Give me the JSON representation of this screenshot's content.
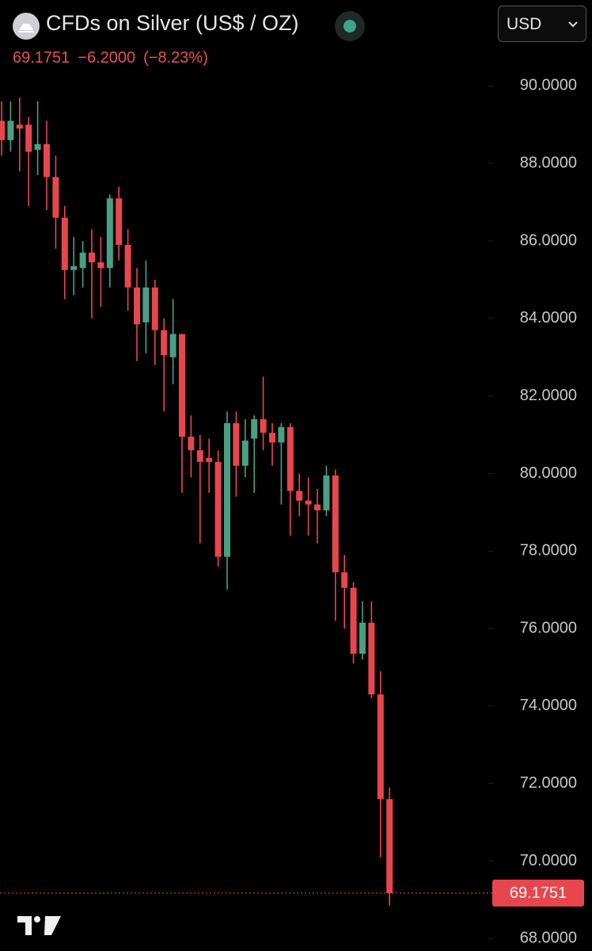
{
  "header": {
    "title": "CFDs on Silver (US$ / OZ)",
    "last": "69.1751",
    "change": "−6.2000",
    "change_pct": "(−8.23%)",
    "currency": "USD"
  },
  "chart_data": {
    "type": "candlestick",
    "open": [
      89.1,
      88.6,
      89.0,
      89.0,
      88.35,
      88.5,
      87.65,
      86.6,
      85.25,
      85.3,
      85.7,
      85.45,
      85.3,
      87.1,
      85.9,
      84.8,
      83.9,
      84.8,
      83.7,
      83.0,
      83.6,
      80.95,
      80.6,
      80.4,
      80.3,
      77.85,
      81.3,
      80.2,
      80.9,
      81.4,
      81.05,
      80.8,
      81.2,
      79.55,
      79.3,
      79.2,
      79.05,
      79.95,
      77.45,
      77.05,
      75.35,
      76.15,
      74.3,
      71.6
    ],
    "high": [
      89.6,
      89.6,
      89.7,
      89.2,
      89.6,
      89.1,
      88.2,
      86.9,
      86.1,
      86.0,
      86.3,
      86.1,
      87.2,
      87.4,
      86.3,
      85.3,
      85.5,
      85.0,
      84.0,
      84.5,
      83.6,
      81.5,
      81.0,
      80.9,
      80.6,
      81.6,
      81.6,
      81.4,
      81.5,
      82.5,
      81.3,
      81.3,
      81.3,
      80.0,
      79.9,
      79.6,
      80.2,
      80.1,
      77.9,
      77.2,
      76.7,
      76.7,
      74.9,
      71.9
    ],
    "low": [
      88.2,
      88.3,
      87.8,
      86.9,
      87.7,
      86.8,
      85.8,
      84.5,
      84.6,
      84.8,
      84.0,
      84.3,
      84.8,
      85.5,
      84.2,
      82.9,
      83.1,
      82.8,
      81.6,
      82.3,
      79.5,
      79.9,
      78.2,
      79.5,
      77.6,
      77.0,
      79.4,
      79.9,
      79.5,
      80.6,
      80.2,
      79.2,
      78.4,
      78.9,
      78.4,
      78.2,
      78.9,
      76.2,
      76.0,
      75.1,
      75.2,
      74.2,
      70.1,
      68.85
    ],
    "close": [
      88.6,
      89.1,
      88.9,
      88.3,
      88.5,
      87.65,
      86.6,
      85.25,
      85.35,
      85.7,
      85.45,
      85.3,
      87.1,
      85.9,
      84.8,
      83.85,
      84.8,
      83.7,
      83.05,
      83.6,
      80.95,
      80.6,
      80.3,
      80.3,
      77.85,
      81.3,
      80.2,
      80.85,
      81.4,
      81.05,
      80.8,
      81.2,
      79.55,
      79.3,
      79.2,
      79.05,
      79.95,
      77.45,
      77.05,
      75.35,
      76.15,
      74.3,
      71.6,
      69.1751
    ],
    "up_color": "#4a9f85",
    "down_color": "#e8464e",
    "ylim": [
      67.68,
      90.99
    ],
    "yticks": [
      {
        "value": 68,
        "label": "68.0000"
      },
      {
        "value": 70,
        "label": "70.0000"
      },
      {
        "value": 72,
        "label": "72.0000"
      },
      {
        "value": 74,
        "label": "74.0000"
      },
      {
        "value": 76,
        "label": "76.0000"
      },
      {
        "value": 78,
        "label": "78.0000"
      },
      {
        "value": 80,
        "label": "80.0000"
      },
      {
        "value": 82,
        "label": "82.0000"
      },
      {
        "value": 84,
        "label": "84.0000"
      },
      {
        "value": 86,
        "label": "86.0000"
      },
      {
        "value": 88,
        "label": "88.0000"
      },
      {
        "value": 90,
        "label": "90.0000"
      }
    ],
    "grid": false,
    "last_price_line": true
  }
}
